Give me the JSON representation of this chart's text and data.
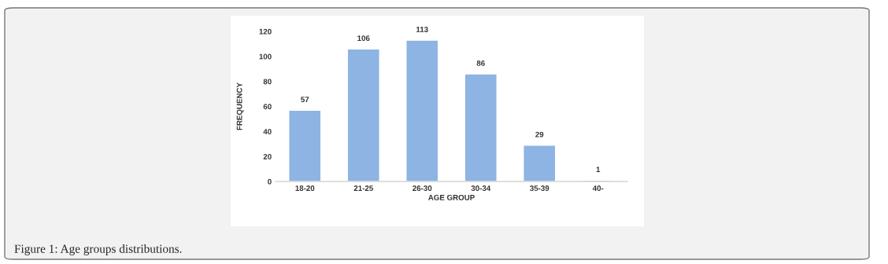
{
  "chart_data": {
    "type": "bar",
    "categories": [
      "18-20",
      "21-25",
      "26-30",
      "30-34",
      "35-39",
      "40-"
    ],
    "values": [
      57,
      106,
      113,
      86,
      29,
      1
    ],
    "color": "#8db4e2",
    "xlabel": "AGE GROUP",
    "ylabel": "FREQUENCY",
    "ylim": [
      0,
      120
    ],
    "yticks": [
      0,
      20,
      40,
      60,
      80,
      100,
      120
    ],
    "grid": false,
    "data_labels": true,
    "annotations": [
      "Figure 1: Age groups distributions."
    ]
  }
}
